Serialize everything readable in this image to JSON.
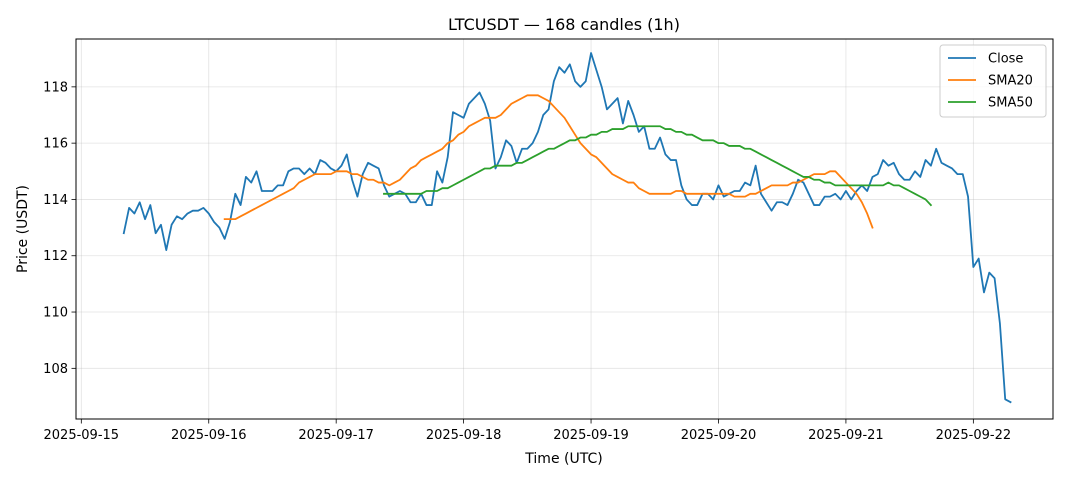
{
  "chart_data": {
    "type": "line",
    "title": "LTCUSDT — 168 candles (1h)",
    "xlabel": "Time (UTC)",
    "ylabel": "Price (USDT)",
    "x_start": "2025-09-15T08:00",
    "x_step_hours": 1,
    "xlim": [
      "2025-09-14T23:00",
      "2025-09-22T15:00"
    ],
    "ylim": [
      106.2,
      119.7
    ],
    "x_ticks": [
      "2025-09-15",
      "2025-09-16",
      "2025-09-17",
      "2025-09-18",
      "2025-09-19",
      "2025-09-20",
      "2025-09-21",
      "2025-09-22"
    ],
    "y_ticks": [
      108,
      110,
      112,
      114,
      116,
      118
    ],
    "grid": true,
    "legend_position": "top-right",
    "colors": {
      "close": "#1f77b4",
      "sma20": "#ff7f0e",
      "sma50": "#2ca02c"
    },
    "series": [
      {
        "name": "Close",
        "values": [
          112.8,
          113.7,
          113.5,
          113.9,
          113.3,
          113.8,
          112.8,
          113.1,
          112.2,
          113.1,
          113.4,
          113.3,
          113.5,
          113.6,
          113.6,
          113.7,
          113.5,
          113.2,
          113.0,
          112.6,
          113.2,
          114.2,
          113.8,
          114.8,
          114.6,
          115.0,
          114.3,
          114.3,
          114.3,
          114.5,
          114.5,
          115.0,
          115.1,
          115.1,
          114.9,
          115.1,
          114.9,
          115.4,
          115.3,
          115.1,
          115.0,
          115.2,
          115.6,
          114.7,
          114.1,
          114.9,
          115.3,
          115.2,
          115.1,
          114.5,
          114.1,
          114.2,
          114.3,
          114.2,
          113.9,
          113.9,
          114.2,
          113.8,
          113.8,
          115.0,
          114.6,
          115.5,
          117.1,
          117.0,
          116.9,
          117.4,
          117.6,
          117.8,
          117.4,
          116.8,
          115.1,
          115.5,
          116.1,
          115.9,
          115.3,
          115.8,
          115.8,
          116.0,
          116.4,
          117.0,
          117.2,
          118.2,
          118.7,
          118.5,
          118.8,
          118.2,
          118.0,
          118.2,
          119.2,
          118.6,
          118.0,
          117.2,
          117.4,
          117.6,
          116.7,
          117.5,
          117.0,
          116.4,
          116.6,
          115.8,
          115.8,
          116.2,
          115.6,
          115.4,
          115.4,
          114.5,
          114.0,
          113.8,
          113.8,
          114.2,
          114.2,
          114.0,
          114.5,
          114.1,
          114.2,
          114.3,
          114.3,
          114.6,
          114.5,
          115.2,
          114.2,
          113.9,
          113.6,
          113.9,
          113.9,
          113.8,
          114.2,
          114.7,
          114.6,
          114.2,
          113.8,
          113.8,
          114.1,
          114.1,
          114.2,
          114.0,
          114.3,
          114.0,
          114.3,
          114.5,
          114.3,
          114.8,
          114.9,
          115.4,
          115.2,
          115.3,
          114.9,
          114.7,
          114.7,
          115.0,
          114.8,
          115.4,
          115.2,
          115.8,
          115.3,
          115.2,
          115.1,
          114.9,
          114.9,
          114.1,
          111.6,
          111.9,
          110.7,
          111.4,
          111.2,
          109.6,
          106.9,
          106.8
        ]
      },
      {
        "name": "SMA20",
        "start_index": 19,
        "values": [
          113.3,
          113.3,
          113.3,
          113.4,
          113.5,
          113.6,
          113.7,
          113.8,
          113.9,
          114.0,
          114.1,
          114.2,
          114.3,
          114.4,
          114.6,
          114.7,
          114.8,
          114.9,
          114.9,
          114.9,
          114.9,
          115.0,
          115.0,
          115.0,
          114.9,
          114.9,
          114.8,
          114.7,
          114.7,
          114.6,
          114.6,
          114.5,
          114.6,
          114.7,
          114.9,
          115.1,
          115.2,
          115.4,
          115.5,
          115.6,
          115.7,
          115.8,
          116.0,
          116.1,
          116.3,
          116.4,
          116.6,
          116.7,
          116.8,
          116.9,
          116.9,
          116.9,
          117.0,
          117.2,
          117.4,
          117.5,
          117.6,
          117.7,
          117.7,
          117.7,
          117.6,
          117.5,
          117.3,
          117.1,
          116.9,
          116.6,
          116.3,
          116.0,
          115.8,
          115.6,
          115.5,
          115.3,
          115.1,
          114.9,
          114.8,
          114.7,
          114.6,
          114.6,
          114.4,
          114.3,
          114.2,
          114.2,
          114.2,
          114.2,
          114.2,
          114.3,
          114.3,
          114.2,
          114.2,
          114.2,
          114.2,
          114.2,
          114.2,
          114.2,
          114.2,
          114.2,
          114.1,
          114.1,
          114.1,
          114.2,
          114.2,
          114.3,
          114.4,
          114.5,
          114.5,
          114.5,
          114.5,
          114.6,
          114.6,
          114.7,
          114.8,
          114.9,
          114.9,
          114.9,
          115.0,
          115.0,
          114.8,
          114.6,
          114.4,
          114.2,
          113.9,
          113.5,
          113.0
        ]
      },
      {
        "name": "SMA50",
        "start_index": 49,
        "values": [
          114.2,
          114.2,
          114.2,
          114.2,
          114.2,
          114.2,
          114.2,
          114.2,
          114.3,
          114.3,
          114.3,
          114.4,
          114.4,
          114.5,
          114.6,
          114.7,
          114.8,
          114.9,
          115.0,
          115.1,
          115.1,
          115.2,
          115.2,
          115.2,
          115.2,
          115.3,
          115.3,
          115.4,
          115.5,
          115.6,
          115.7,
          115.8,
          115.8,
          115.9,
          116.0,
          116.1,
          116.1,
          116.2,
          116.2,
          116.3,
          116.3,
          116.4,
          116.4,
          116.5,
          116.5,
          116.5,
          116.6,
          116.6,
          116.6,
          116.6,
          116.6,
          116.6,
          116.6,
          116.5,
          116.5,
          116.4,
          116.4,
          116.3,
          116.3,
          116.2,
          116.1,
          116.1,
          116.1,
          116.0,
          116.0,
          115.9,
          115.9,
          115.9,
          115.8,
          115.8,
          115.7,
          115.6,
          115.5,
          115.4,
          115.3,
          115.2,
          115.1,
          115.0,
          114.9,
          114.8,
          114.8,
          114.7,
          114.7,
          114.6,
          114.6,
          114.5,
          114.5,
          114.5,
          114.5,
          114.5,
          114.5,
          114.5,
          114.5,
          114.5,
          114.5,
          114.6,
          114.5,
          114.5,
          114.4,
          114.3,
          114.2,
          114.1,
          114.0,
          113.8
        ]
      }
    ]
  }
}
